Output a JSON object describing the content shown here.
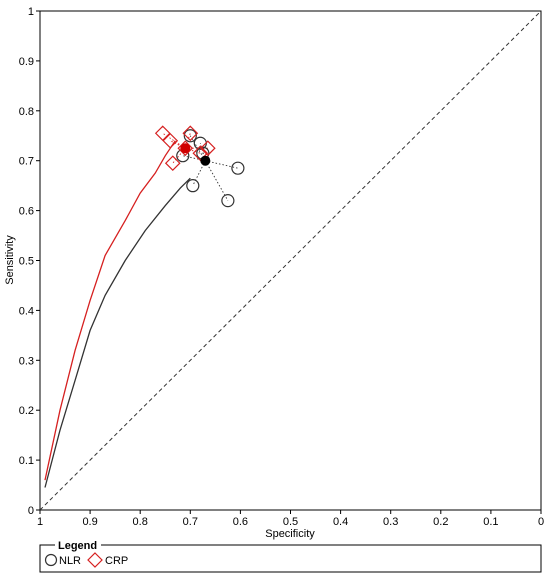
{
  "chart_data": {
    "type": "scatter",
    "xlabel": "Specificity",
    "ylabel": "Sensitivity",
    "xlim": [
      1,
      0
    ],
    "ylim": [
      0,
      1
    ],
    "x_reversed": true,
    "x_ticks": [
      "1",
      "0.9",
      "0.8",
      "0.7",
      "0.6",
      "0.5",
      "0.4",
      "0.3",
      "0.2",
      "0.1",
      "0"
    ],
    "y_ticks": [
      "0",
      "0.1",
      "0.2",
      "0.3",
      "0.4",
      "0.5",
      "0.6",
      "0.7",
      "0.8",
      "0.9",
      "1"
    ],
    "grid": false,
    "reference_line": "dashed diagonal",
    "legend": {
      "title": "Legend",
      "placement": "bottom-left",
      "entries": [
        {
          "label": "NLR",
          "marker": "circle",
          "color": "#333333"
        },
        {
          "label": "CRP",
          "marker": "diamond",
          "color": "#d62020"
        }
      ]
    },
    "series": [
      {
        "name": "NLR",
        "color": "#333333",
        "marker": "circle",
        "studies": [
          {
            "spec": 0.7,
            "sens": 0.75
          },
          {
            "spec": 0.68,
            "sens": 0.735
          },
          {
            "spec": 0.715,
            "sens": 0.71
          },
          {
            "spec": 0.675,
            "sens": 0.715
          },
          {
            "spec": 0.605,
            "sens": 0.685
          },
          {
            "spec": 0.695,
            "sens": 0.65
          },
          {
            "spec": 0.625,
            "sens": 0.62
          }
        ],
        "summary_point": {
          "spec": 0.67,
          "sens": 0.7
        },
        "sroc_curve": [
          [
            0.99,
            0.045
          ],
          [
            0.96,
            0.16
          ],
          [
            0.93,
            0.26
          ],
          [
            0.9,
            0.36
          ],
          [
            0.87,
            0.43
          ],
          [
            0.83,
            0.5
          ],
          [
            0.79,
            0.56
          ],
          [
            0.75,
            0.61
          ],
          [
            0.72,
            0.645
          ],
          [
            0.7,
            0.665
          ]
        ]
      },
      {
        "name": "CRP",
        "color": "#d62020",
        "marker": "diamond",
        "studies": [
          {
            "spec": 0.755,
            "sens": 0.755
          },
          {
            "spec": 0.74,
            "sens": 0.74
          },
          {
            "spec": 0.7,
            "sens": 0.755
          },
          {
            "spec": 0.71,
            "sens": 0.725
          },
          {
            "spec": 0.665,
            "sens": 0.725
          },
          {
            "spec": 0.68,
            "sens": 0.715
          },
          {
            "spec": 0.735,
            "sens": 0.695
          }
        ],
        "summary_point": {
          "spec": 0.71,
          "sens": 0.725
        },
        "sroc_curve": [
          [
            0.99,
            0.06
          ],
          [
            0.96,
            0.2
          ],
          [
            0.93,
            0.32
          ],
          [
            0.9,
            0.42
          ],
          [
            0.87,
            0.51
          ],
          [
            0.83,
            0.58
          ],
          [
            0.8,
            0.635
          ],
          [
            0.77,
            0.675
          ],
          [
            0.75,
            0.71
          ],
          [
            0.73,
            0.74
          ]
        ]
      }
    ]
  }
}
